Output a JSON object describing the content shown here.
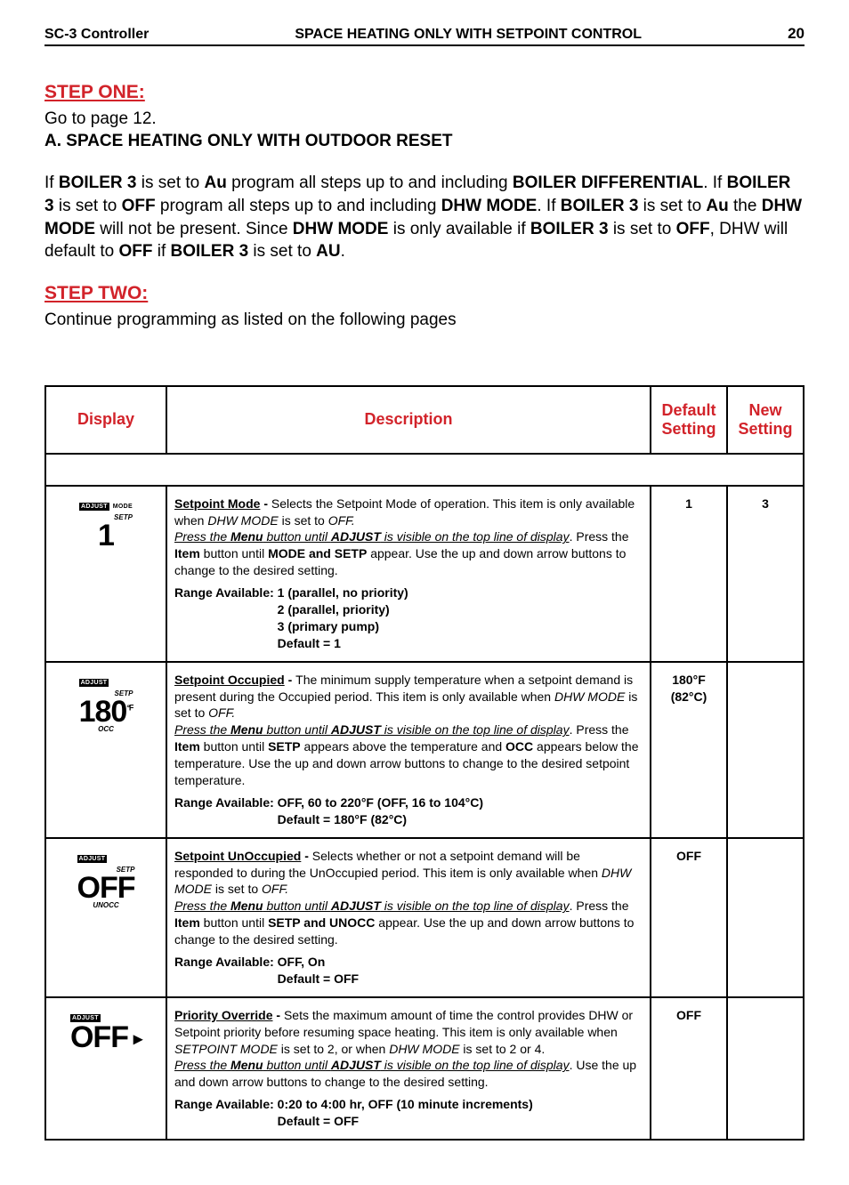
{
  "header": {
    "left": "SC-3 Controller",
    "center": "SPACE HEATING ONLY WITH SETPOINT CONTROL",
    "page_number": "20"
  },
  "step_one": {
    "heading": "STEP ONE:",
    "line1": "Go to page 12.",
    "subhead": "A. SPACE HEATING ONLY WITH OUTDOOR RESET"
  },
  "paragraph": {
    "p1": "If ",
    "b1": "BOILER 3",
    "p2": " is set to ",
    "b2": "Au",
    "p3": " program all steps up to and including ",
    "b3": "BOILER DIFFERENTIAL",
    "p4": ". If ",
    "b4": "BOILER 3",
    "p5": " is set to ",
    "b5": "OFF",
    "p6": " program all steps up to and including ",
    "b6": "DHW MODE",
    "p7": ". If ",
    "b7": "BOILER 3",
    "p8": " is set to ",
    "b8": "Au",
    "p9": " the ",
    "b9": "DHW MODE",
    "p10": " will not be present. Since ",
    "b10": "DHW MODE",
    "p11": " is only available if ",
    "b11": "BOILER 3",
    "p12": " is set to ",
    "b12": "OFF",
    "p13": ", DHW will default to ",
    "b13": "OFF",
    "p14": " if ",
    "b14": "BOILER 3",
    "p15": " is set to ",
    "b15": "AU",
    "p16": "."
  },
  "step_two": {
    "heading": "STEP TWO:",
    "line1": "Continue programming as listed on the following pages"
  },
  "table": {
    "headers": {
      "display": "Display",
      "description": "Description",
      "default": "Default Setting",
      "new": "New Setting"
    },
    "rows": [
      {
        "lcd": {
          "top_inv": "ADJUST",
          "top_plain": "MODE",
          "sub": "SETP",
          "main": "1",
          "bot": ""
        },
        "title": "Setpoint Mode - ",
        "lead": "Selects the Setpoint Mode of operation. This item is only available when ",
        "lead_i": "DHW MODE",
        "lead2": " is set to ",
        "lead_i2": "OFF.",
        "instr_pre": "Press the ",
        "instr_b1": "Menu",
        "instr_mid": " button until ",
        "instr_b2": "ADJUST",
        "instr_post": " is visible on the top line of display",
        "after1": ". Press the ",
        "after_b1": "Item",
        "after2": " button until ",
        "after_b2": "MODE and SETP",
        "after3": " appear. Use the up and down arrow buttons to change                       to the desired setting.",
        "range_label": "Range Available:   ",
        "range_lines": [
          "1  (parallel, no priority)",
          "2  (parallel, priority)",
          "3  (primary pump)",
          "Default = 1"
        ],
        "default": "1",
        "new": "3"
      },
      {
        "lcd": {
          "top_inv": "ADJUST",
          "top_plain": "",
          "sub": "SETP",
          "main": "180",
          "unit": "°F",
          "bot": "OCC"
        },
        "title": "Setpoint Occupied - ",
        "lead": "The minimum supply temperature when a setpoint demand is present during the Occupied period. This item is only available when ",
        "lead_i": "DHW MODE",
        "lead2": " is set to ",
        "lead_i2": "OFF.",
        "instr_pre": "Press the ",
        "instr_b1": "Menu",
        "instr_mid": " button until ",
        "instr_b2": "ADJUST",
        "instr_post": " is visible on the top line of display",
        "after1": ". Press the ",
        "after_b1": "Item",
        "after2": " button until ",
        "after_b2": "SETP",
        "after3": " appears above the temperature and ",
        "after_b3": "OCC",
        "after4": " appears below the temperature. Use the up and down arrow buttons to change to the desired setpoint temperature.",
        "range_label": "Range Available:   ",
        "range_lines": [
          "OFF, 60 to 220°F (OFF, 16 to 104°C)",
          "Default = 180°F (82°C)"
        ],
        "default": "180°F (82°C)",
        "new": ""
      },
      {
        "lcd": {
          "top_inv": "ADJUST",
          "top_plain": "",
          "sub": "SETP",
          "main": "OFF",
          "bot": "UNOCC"
        },
        "title": "Setpoint UnOccupied - ",
        "lead": "Selects whether or not a setpoint demand will be responded to during the UnOccupied period. This item is only available when ",
        "lead_i": "DHW MODE",
        "lead2": " is set to ",
        "lead_i2": "OFF.",
        "instr_pre": "Press the ",
        "instr_b1": "Menu",
        "instr_mid": " button until ",
        "instr_b2": "ADJUST",
        "instr_post": " is visible on the top line of display",
        "after1": ". Press the ",
        "after_b1": "Item",
        "after2": " button until ",
        "after_b2": "SETP and UNOCC",
        "after3": " appear. Use the up and down arrow buttons to change to the desired setting.",
        "range_label": "Range Available:   ",
        "range_lines": [
          "OFF, On",
          "Default = OFF"
        ],
        "default": "OFF",
        "new": ""
      },
      {
        "lcd": {
          "top_inv": "ADJUST",
          "top_plain": "",
          "sub": "",
          "main": "OFF",
          "arrow": "▸",
          "bot": ""
        },
        "title": "Priority Override - ",
        "lead": "Sets the maximum amount of time the control provides DHW or Setpoint priority before resuming space heating. This item is only available when ",
        "lead_i": "SETPOINT MODE",
        "lead2": " is set to 2, or when ",
        "lead_i2": "DHW MODE",
        "lead3": " is set to 2 or 4.",
        "instr_pre": "Press the ",
        "instr_b1": "Menu",
        "instr_mid": " button until ",
        "instr_b2": "ADJUST",
        "instr_post": " is visible on the top line of display",
        "after1": ". Use the up and down arrow buttons to change to the desired setting.",
        "range_label": "Range Available:   ",
        "range_lines": [
          "0:20 to 4:00 hr, OFF (10 minute increments)",
          "Default = OFF"
        ],
        "default": "OFF",
        "new": ""
      }
    ]
  }
}
